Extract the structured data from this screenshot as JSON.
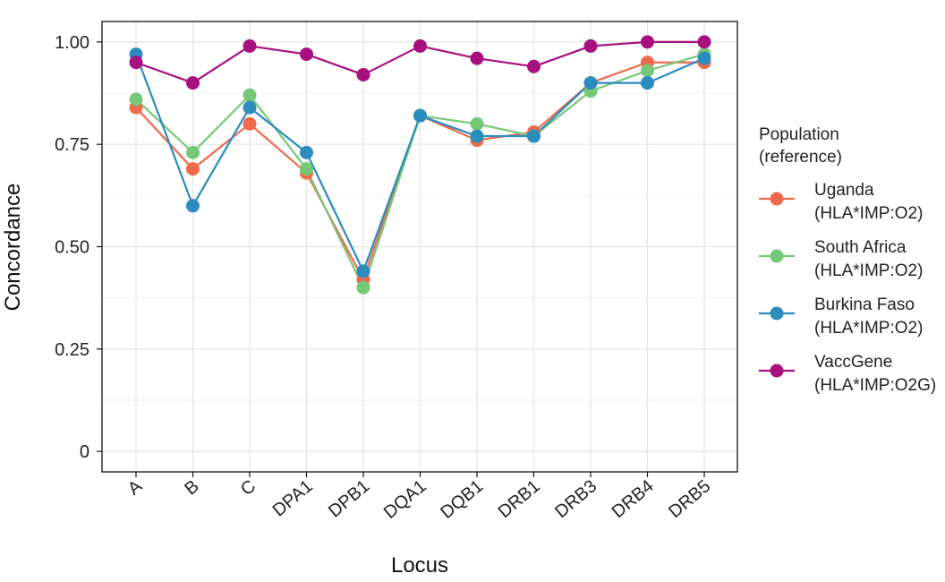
{
  "chart_data": {
    "type": "line",
    "xlabel": "Locus",
    "ylabel": "Concordance",
    "categories": [
      "A",
      "B",
      "C",
      "DPA1",
      "DPB1",
      "DQA1",
      "DQB1",
      "DRB1",
      "DRB3",
      "DRB4",
      "DRB5"
    ],
    "ylim": [
      -0.05,
      1.05
    ],
    "yticks": [
      0,
      0.25,
      0.5,
      0.75,
      1.0
    ],
    "ytick_labels": [
      "0",
      "0.25",
      "0.50",
      "0.75",
      "1.00"
    ],
    "grid": true,
    "legend": {
      "title_lines": [
        "Population",
        "(reference)"
      ],
      "placement": "right"
    },
    "series": [
      {
        "name_line1": "Uganda",
        "name_line2": "(HLA*IMP:O2)",
        "color": "#ef6a4c",
        "values": [
          0.84,
          0.69,
          0.8,
          0.68,
          0.42,
          0.82,
          0.76,
          0.78,
          0.9,
          0.95,
          0.95
        ]
      },
      {
        "name_line1": "South Africa",
        "name_line2": "(HLA*IMP:O2)",
        "color": "#77c779",
        "values": [
          0.86,
          0.73,
          0.87,
          0.69,
          0.4,
          0.82,
          0.8,
          0.77,
          0.88,
          0.93,
          0.97
        ]
      },
      {
        "name_line1": "Burkina Faso",
        "name_line2": "(HLA*IMP:O2)",
        "color": "#2b8cbe",
        "values": [
          0.97,
          0.6,
          0.84,
          0.73,
          0.44,
          0.82,
          0.77,
          0.77,
          0.9,
          0.9,
          0.96
        ]
      },
      {
        "name_line1": "VaccGene",
        "name_line2": "(HLA*IMP:O2G)",
        "color": "#a6117f",
        "values": [
          0.95,
          0.9,
          0.99,
          0.97,
          0.92,
          0.99,
          0.96,
          0.94,
          0.99,
          1.0,
          1.0
        ]
      }
    ]
  }
}
